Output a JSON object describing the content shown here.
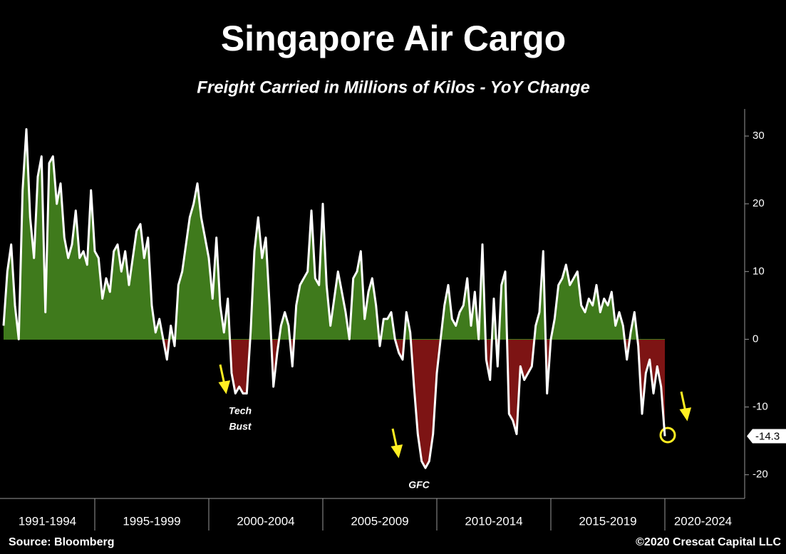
{
  "chart_data": {
    "type": "area-line",
    "title": "Singapore Air Cargo",
    "subtitle": "Freight Carried in Millions of Kilos - YoY Change",
    "groups": [
      {
        "label": "1991-1994",
        "values": [
          2,
          10,
          14,
          5,
          0,
          22,
          31,
          18,
          12,
          24,
          27,
          4,
          26,
          27,
          20,
          23,
          15,
          12,
          14,
          19,
          12,
          13,
          11,
          22
        ]
      },
      {
        "label": "1995-1999",
        "values": [
          13,
          12,
          6,
          9,
          7,
          13,
          14,
          10,
          13,
          8,
          12,
          16,
          17,
          12,
          15,
          5,
          1,
          3,
          0,
          -3,
          2,
          -1,
          8,
          10,
          14,
          18,
          20,
          23,
          18,
          15
        ]
      },
      {
        "label": "2000-2004",
        "values": [
          12,
          6,
          15,
          5,
          1,
          6,
          -5,
          -8,
          -7,
          -8,
          -8,
          1,
          13,
          18,
          12,
          15,
          5,
          -7,
          -2,
          2,
          4,
          2,
          -4,
          5,
          8,
          9,
          10,
          19,
          9,
          8
        ]
      },
      {
        "label": "2005-2009",
        "values": [
          20,
          8,
          2,
          6,
          10,
          7,
          4,
          0,
          9,
          10,
          13,
          3,
          7,
          9,
          5,
          -1,
          3,
          3,
          4,
          0,
          -2,
          -3,
          4,
          1,
          -7,
          -14,
          -18,
          -19,
          -18,
          -14
        ]
      },
      {
        "label": "2010-2014",
        "values": [
          -5,
          0,
          5,
          8,
          3,
          2,
          4,
          5,
          9,
          2,
          7,
          0,
          14,
          -3,
          -6,
          6,
          -4,
          8,
          10,
          -11,
          -12,
          -14,
          -4,
          -6,
          -5,
          -4,
          2,
          4,
          13,
          -8
        ]
      },
      {
        "label": "2015-2019",
        "values": [
          0,
          3,
          8,
          9,
          11,
          8,
          9,
          10,
          5,
          4,
          6,
          5,
          8,
          4,
          6,
          5,
          7,
          2,
          4,
          2,
          -3,
          1,
          4,
          -1,
          -11,
          -5,
          -3,
          -8,
          -4,
          -7
        ]
      },
      {
        "label": "2020-2024",
        "values": [
          -14.3
        ]
      }
    ],
    "line_color": "#ffffff",
    "positive_color": "#3f7a1c",
    "negative_color": "#7d1414",
    "ylim": [
      -23.5,
      34
    ],
    "yticks": [
      30,
      20,
      10,
      0,
      -10,
      -20
    ],
    "annotations": [
      [
        "Tech",
        "Bust"
      ],
      [
        "GFC"
      ]
    ],
    "source": "Source: Bloomberg",
    "copyright": "©2020 Crescat Capital LLC"
  }
}
